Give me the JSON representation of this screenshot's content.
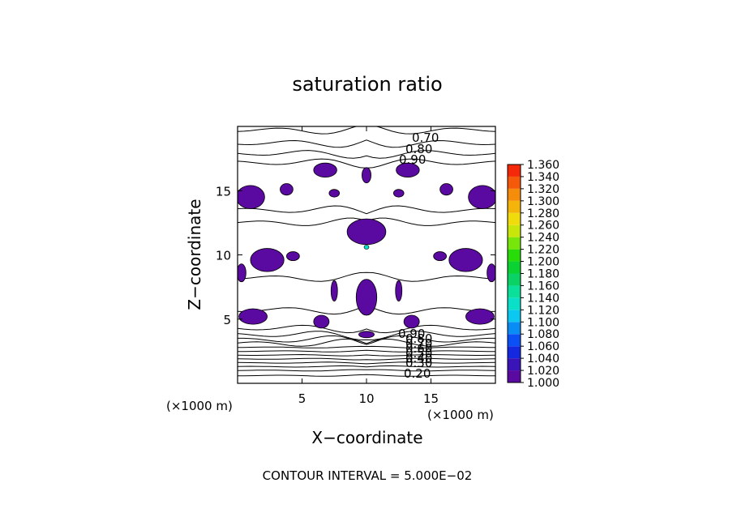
{
  "chart_data": {
    "type": "contour",
    "title": "saturation ratio",
    "xlabel": "X−coordinate",
    "ylabel": "Z−coordinate",
    "xunit": "(×1000 m)",
    "yunit": "(×1000 m)",
    "xlim": [
      0,
      20
    ],
    "ylim": [
      0,
      20
    ],
    "xticks": [
      5,
      10,
      15
    ],
    "yticks": [
      5,
      10,
      15
    ],
    "xtick_labels": [
      "5",
      "10",
      "15"
    ],
    "ytick_labels": [
      "5",
      "10",
      "15"
    ],
    "footer": "CONTOUR INTERVAL = 5.000E−02",
    "contour_interval": 0.05,
    "contour_labels_top": [
      "0.70",
      "0.80",
      "0.90"
    ],
    "contour_labels_bottom": [
      "0.90",
      "0.80",
      "0.70",
      "0.60",
      "0.50",
      "0.40",
      "0.30",
      "0.20"
    ],
    "colorbar": {
      "levels": [
        "1.000",
        "1.020",
        "1.040",
        "1.060",
        "1.080",
        "1.100",
        "1.120",
        "1.140",
        "1.160",
        "1.180",
        "1.200",
        "1.220",
        "1.240",
        "1.260",
        "1.280",
        "1.300",
        "1.320",
        "1.340",
        "1.360"
      ],
      "colors": [
        "#5a0aa0",
        "#3a14b8",
        "#1428e0",
        "#0a50f5",
        "#0a8cf5",
        "#0ac8f0",
        "#0ae0c8",
        "#0ae09a",
        "#0ad264",
        "#0ad232",
        "#28dc0a",
        "#78e60a",
        "#c8e60a",
        "#f0dc0a",
        "#f5b40a",
        "#f58c0a",
        "#f55a0a",
        "#f5280a",
        "#f58c8c"
      ]
    },
    "supersaturated_regions": [
      {
        "x": 6.8,
        "z": 16.6,
        "rx": 0.9,
        "rz": 0.55,
        "value": 1.005
      },
      {
        "x": 13.2,
        "z": 16.6,
        "rx": 0.9,
        "rz": 0.55,
        "value": 1.005
      },
      {
        "x": 10.0,
        "z": 16.2,
        "rx": 0.35,
        "rz": 0.6,
        "value": 1.005
      },
      {
        "x": 1.0,
        "z": 14.5,
        "rx": 1.1,
        "rz": 0.9,
        "value": 1.005
      },
      {
        "x": 19.0,
        "z": 14.5,
        "rx": 1.1,
        "rz": 0.9,
        "value": 1.005
      },
      {
        "x": 3.8,
        "z": 15.1,
        "rx": 0.5,
        "rz": 0.45,
        "value": 1.005
      },
      {
        "x": 16.2,
        "z": 15.1,
        "rx": 0.5,
        "rz": 0.45,
        "value": 1.005
      },
      {
        "x": 7.5,
        "z": 14.8,
        "rx": 0.4,
        "rz": 0.3,
        "value": 1.005
      },
      {
        "x": 12.5,
        "z": 14.8,
        "rx": 0.4,
        "rz": 0.3,
        "value": 1.005
      },
      {
        "x": 10.0,
        "z": 11.8,
        "rx": 1.5,
        "rz": 1.0,
        "value": 1.01
      },
      {
        "x": 2.3,
        "z": 9.6,
        "rx": 1.3,
        "rz": 0.9,
        "value": 1.005
      },
      {
        "x": 17.7,
        "z": 9.6,
        "rx": 1.3,
        "rz": 0.9,
        "value": 1.005
      },
      {
        "x": 4.3,
        "z": 9.9,
        "rx": 0.5,
        "rz": 0.35,
        "value": 1.005
      },
      {
        "x": 15.7,
        "z": 9.9,
        "rx": 0.5,
        "rz": 0.35,
        "value": 1.005
      },
      {
        "x": 0.3,
        "z": 8.6,
        "rx": 0.35,
        "rz": 0.7,
        "value": 1.005
      },
      {
        "x": 19.7,
        "z": 8.6,
        "rx": 0.35,
        "rz": 0.7,
        "value": 1.005
      },
      {
        "x": 10.0,
        "z": 6.7,
        "rx": 0.8,
        "rz": 1.4,
        "value": 1.005
      },
      {
        "x": 7.5,
        "z": 7.2,
        "rx": 0.25,
        "rz": 0.8,
        "value": 1.005
      },
      {
        "x": 12.5,
        "z": 7.2,
        "rx": 0.25,
        "rz": 0.8,
        "value": 1.005
      },
      {
        "x": 1.2,
        "z": 5.2,
        "rx": 1.1,
        "rz": 0.6,
        "value": 1.005
      },
      {
        "x": 18.8,
        "z": 5.2,
        "rx": 1.1,
        "rz": 0.6,
        "value": 1.005
      },
      {
        "x": 6.5,
        "z": 4.8,
        "rx": 0.6,
        "rz": 0.5,
        "value": 1.005
      },
      {
        "x": 13.5,
        "z": 4.8,
        "rx": 0.6,
        "rz": 0.5,
        "value": 1.005
      },
      {
        "x": 10.0,
        "z": 3.8,
        "rx": 0.6,
        "rz": 0.25,
        "value": 1.005
      }
    ],
    "peak": {
      "x": 10.0,
      "z": 10.6,
      "value": 1.12
    },
    "contour_levels_z": [
      19.7,
      18.7,
      17.9,
      17.2,
      13.5,
      12.5,
      8.2,
      5.7,
      4.3,
      3.8,
      3.4,
      3.1,
      2.8,
      2.5,
      2.2,
      1.9,
      1.6,
      1.3,
      1.0,
      0.6
    ]
  }
}
